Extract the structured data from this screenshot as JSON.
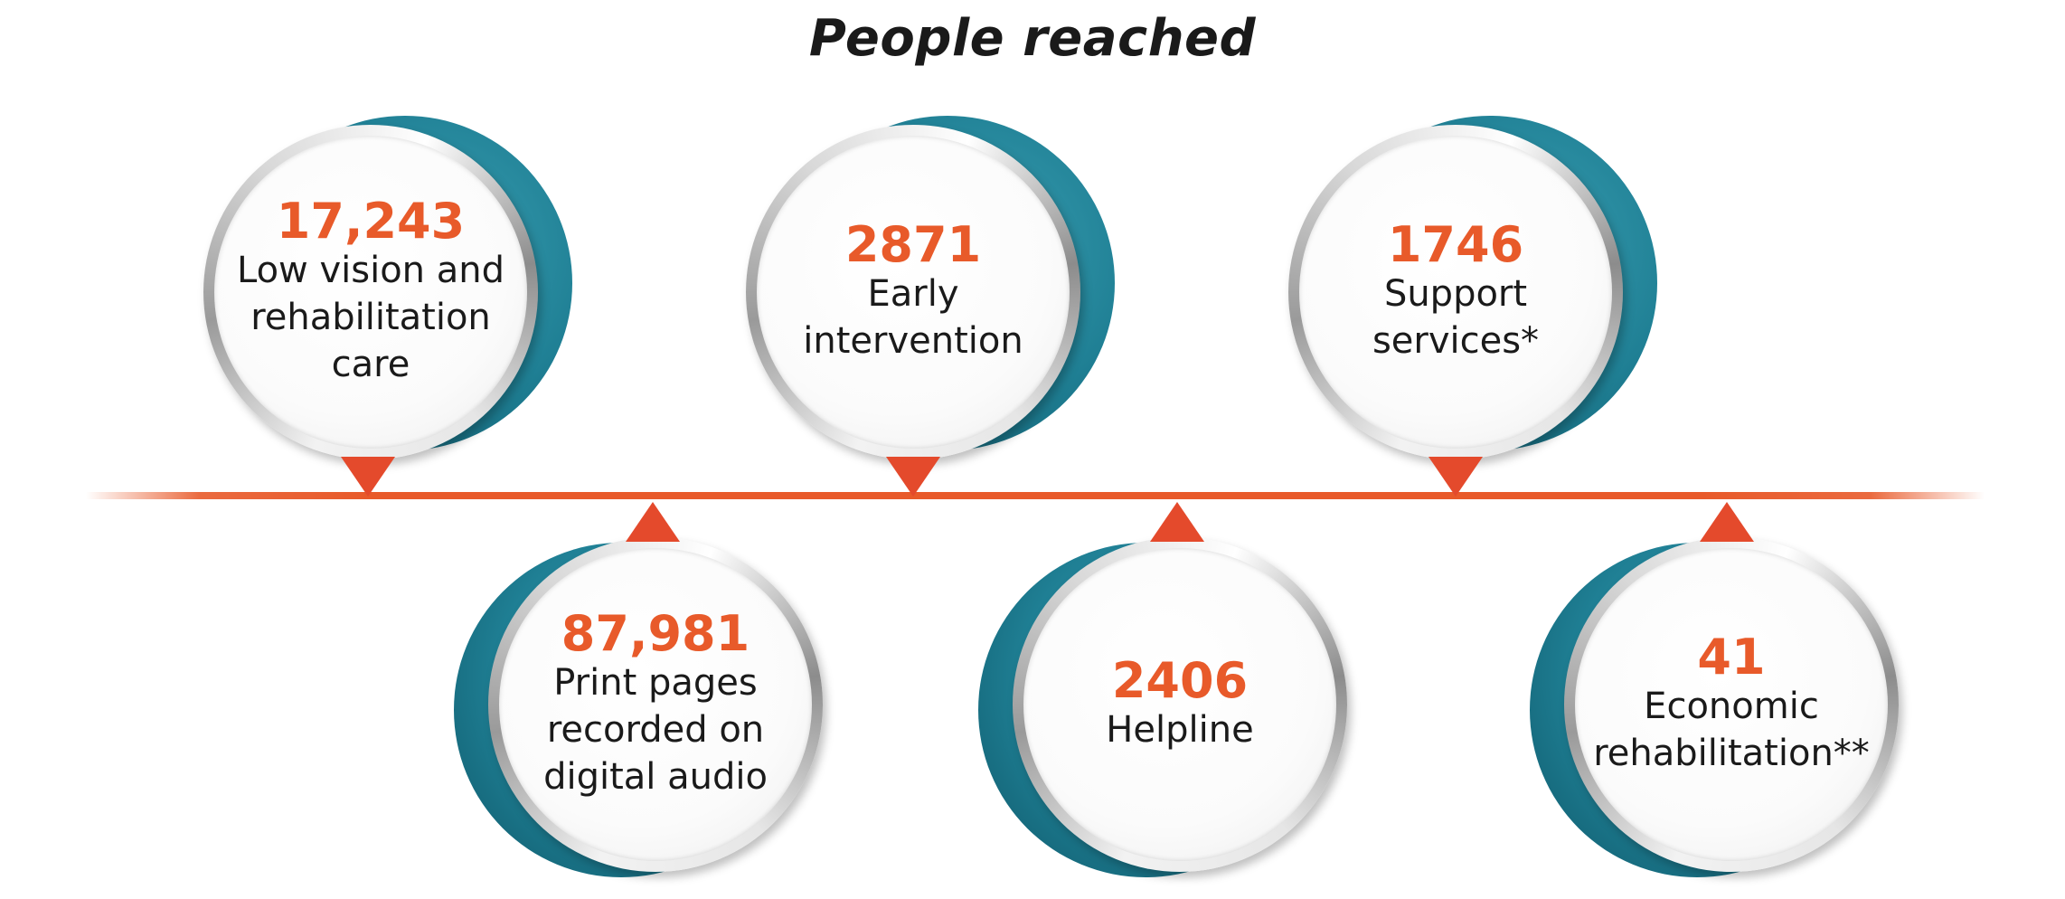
{
  "title": "People reached",
  "accent_color": "#e85a2a",
  "circle_shadow_color": "#1f7f94",
  "stats": [
    {
      "value": "17,243",
      "label": "Low vision and\nrehabilitation\ncare"
    },
    {
      "value": "87,981",
      "label": "Print pages\nrecorded on\ndigital audio"
    },
    {
      "value": "2871",
      "label": "Early\nintervention"
    },
    {
      "value": "2406",
      "label": "Helpline"
    },
    {
      "value": "1746",
      "label": "Support\nservices*"
    },
    {
      "value": "41",
      "label": "Economic\nrehabilitation**"
    }
  ]
}
